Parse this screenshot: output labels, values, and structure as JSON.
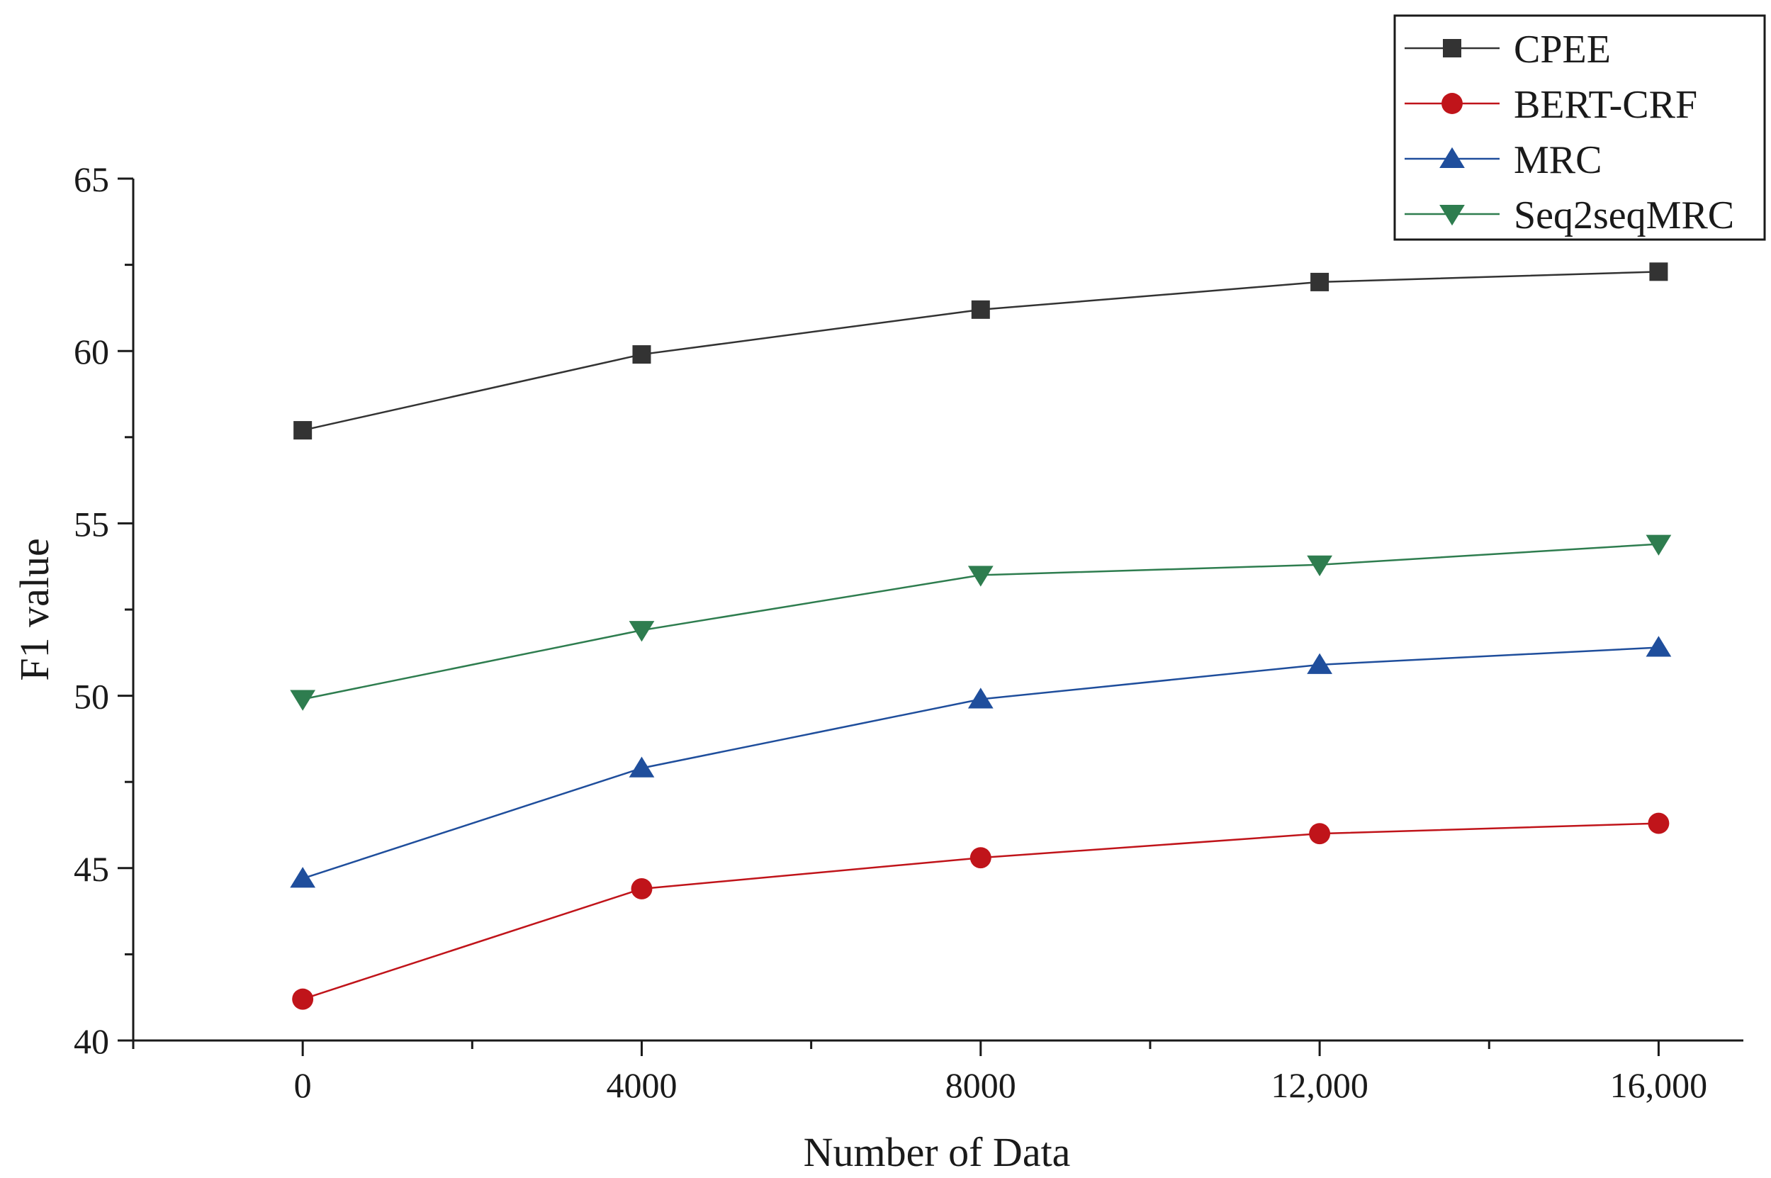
{
  "chart_data": {
    "type": "line",
    "xlabel": "Number of Data",
    "ylabel": "F1 value",
    "xlim": [
      -2000,
      17000
    ],
    "ylim": [
      40,
      65
    ],
    "x": [
      0,
      4000,
      8000,
      12000,
      16000
    ],
    "x_tick_labels": [
      "0",
      "4000",
      "8000",
      "12,000",
      "16,000"
    ],
    "y_ticks": [
      40,
      45,
      50,
      55,
      60,
      65
    ],
    "y_tick_labels": [
      "40",
      "45",
      "50",
      "55",
      "60",
      "65"
    ],
    "grid": false,
    "legend_position": "top-right",
    "series": [
      {
        "name": "CPEE",
        "values": [
          57.7,
          59.9,
          61.2,
          62.0,
          62.3
        ],
        "color": "#333333",
        "marker": "square"
      },
      {
        "name": "BERT-CRF",
        "values": [
          41.2,
          44.4,
          45.3,
          46.0,
          46.3
        ],
        "color": "#c0141a",
        "marker": "circle"
      },
      {
        "name": "MRC",
        "values": [
          44.7,
          47.9,
          49.9,
          50.9,
          51.4
        ],
        "color": "#1f4e9c",
        "marker": "triangle-up"
      },
      {
        "name": "Seq2seqMRC",
        "values": [
          49.9,
          51.9,
          53.5,
          53.8,
          54.4
        ],
        "color": "#2e7d4f",
        "marker": "triangle-down"
      }
    ]
  }
}
